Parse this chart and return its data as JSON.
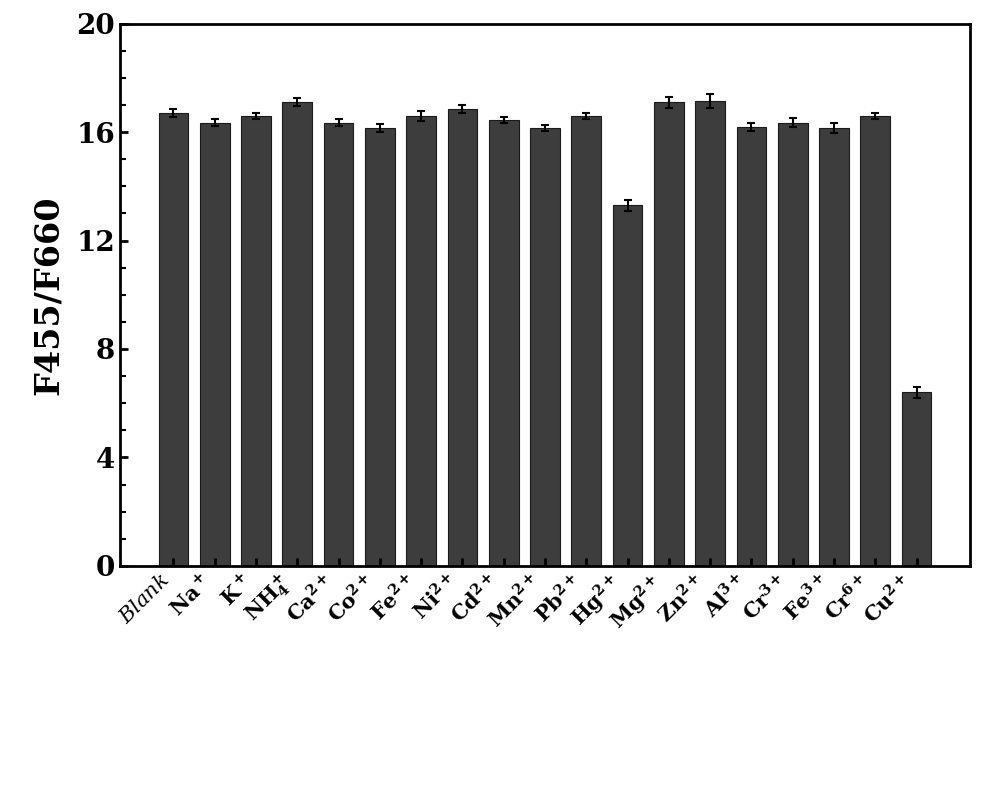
{
  "values": [
    16.7,
    16.35,
    16.6,
    17.1,
    16.35,
    16.15,
    16.6,
    16.85,
    16.45,
    16.15,
    16.6,
    13.3,
    17.1,
    17.15,
    16.2,
    16.35,
    16.15,
    16.6,
    6.4
  ],
  "errors": [
    0.15,
    0.12,
    0.12,
    0.15,
    0.12,
    0.15,
    0.18,
    0.15,
    0.12,
    0.12,
    0.12,
    0.2,
    0.2,
    0.25,
    0.15,
    0.18,
    0.18,
    0.12,
    0.2
  ],
  "bar_color": "#3d3d3d",
  "bar_edge_color": "#1a1a1a",
  "ylabel": "F455/F660",
  "ylim": [
    0,
    20
  ],
  "yticks": [
    0,
    4,
    8,
    12,
    16,
    20
  ],
  "background_color": "#ffffff",
  "ylabel_fontsize": 24,
  "tick_fontsize": 20,
  "xlabel_fontsize": 15
}
